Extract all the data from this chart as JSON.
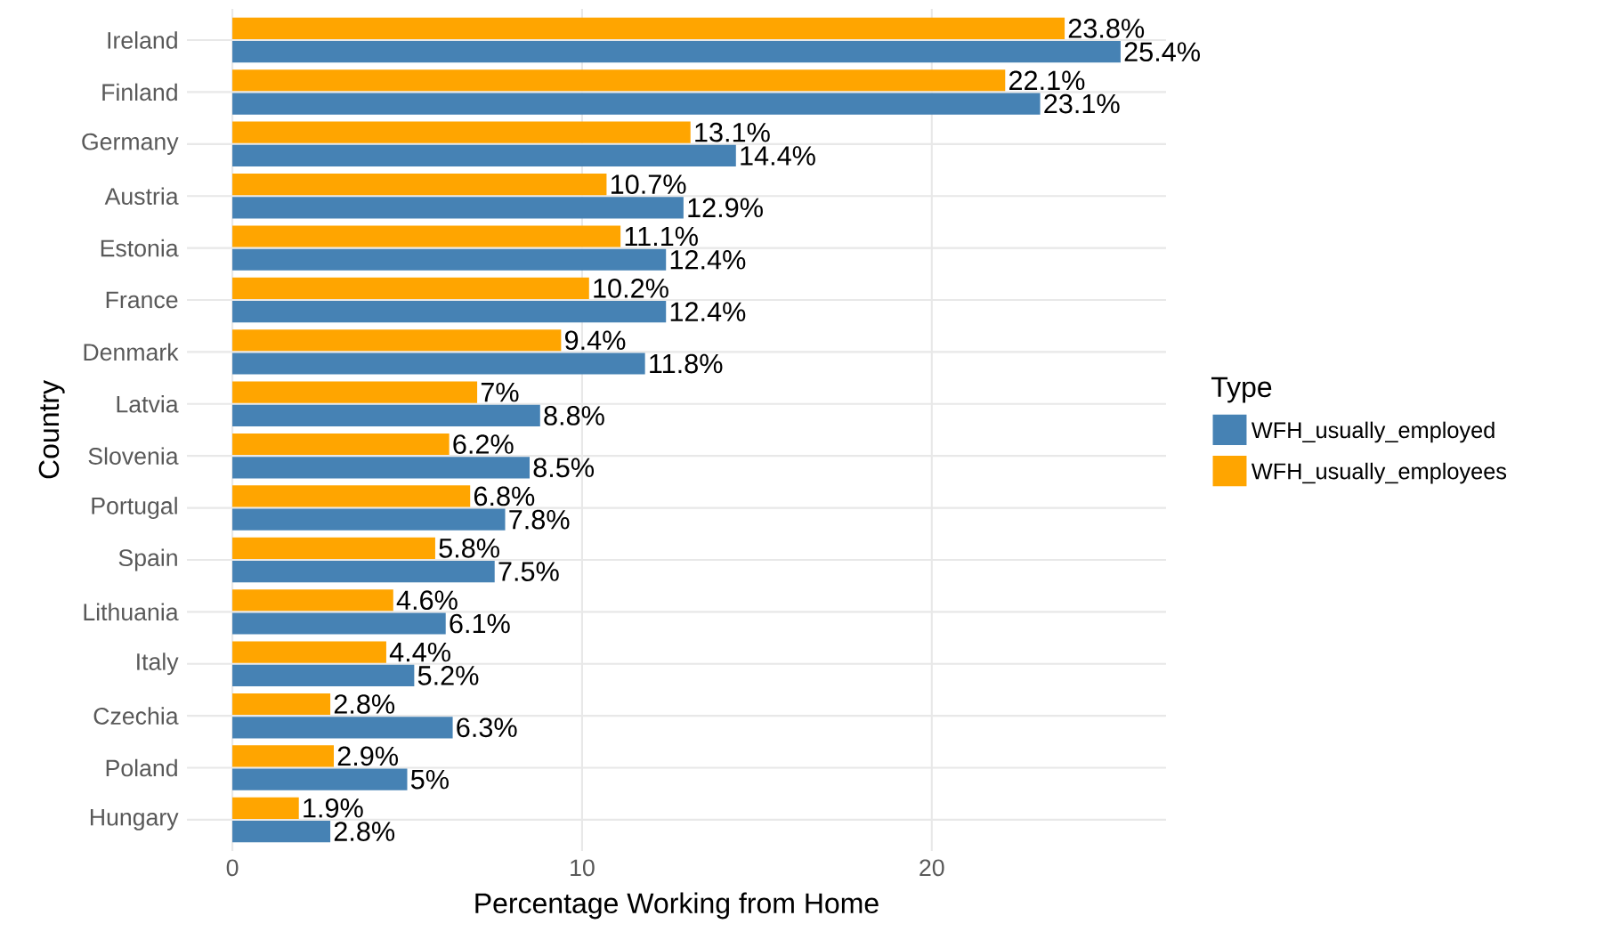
{
  "chart_data": {
    "type": "bar",
    "orientation": "horizontal",
    "xlabel": "Percentage Working from Home",
    "ylabel": "Country",
    "legend_title": "Type",
    "legend": "right",
    "grid": true,
    "categories": [
      "Ireland",
      "Finland",
      "Germany",
      "Austria",
      "Estonia",
      "France",
      "Denmark",
      "Latvia",
      "Slovenia",
      "Portugal",
      "Spain",
      "Lithuania",
      "Italy",
      "Czechia",
      "Poland",
      "Hungary"
    ],
    "xlim": [
      -1.3,
      26.7
    ],
    "xticks": [
      0,
      10,
      20
    ],
    "series": [
      {
        "name": "WFH_usually_employed",
        "color": "#4682b4",
        "values": [
          25.4,
          23.1,
          14.4,
          12.9,
          12.4,
          12.4,
          11.8,
          8.8,
          8.5,
          7.8,
          7.5,
          6.1,
          5.2,
          6.3,
          5,
          2.8
        ],
        "value_labels": [
          "25.4%",
          "23.1%",
          "14.4%",
          "12.9%",
          "12.4%",
          "12.4%",
          "11.8%",
          "8.8%",
          "8.5%",
          "7.8%",
          "7.5%",
          "6.1%",
          "5.2%",
          "6.3%",
          "5%",
          "2.8%"
        ]
      },
      {
        "name": "WFH_usually_employees",
        "color": "#ffa500",
        "values": [
          23.8,
          22.1,
          13.1,
          10.7,
          11.1,
          10.2,
          9.4,
          7,
          6.2,
          6.8,
          5.8,
          4.6,
          4.4,
          2.8,
          2.9,
          1.9
        ],
        "value_labels": [
          "23.8%",
          "22.1%",
          "13.1%",
          "10.7%",
          "11.1%",
          "10.2%",
          "9.4%",
          "7%",
          "6.2%",
          "6.8%",
          "5.8%",
          "4.6%",
          "4.4%",
          "2.8%",
          "2.9%",
          "1.9%"
        ]
      }
    ]
  }
}
